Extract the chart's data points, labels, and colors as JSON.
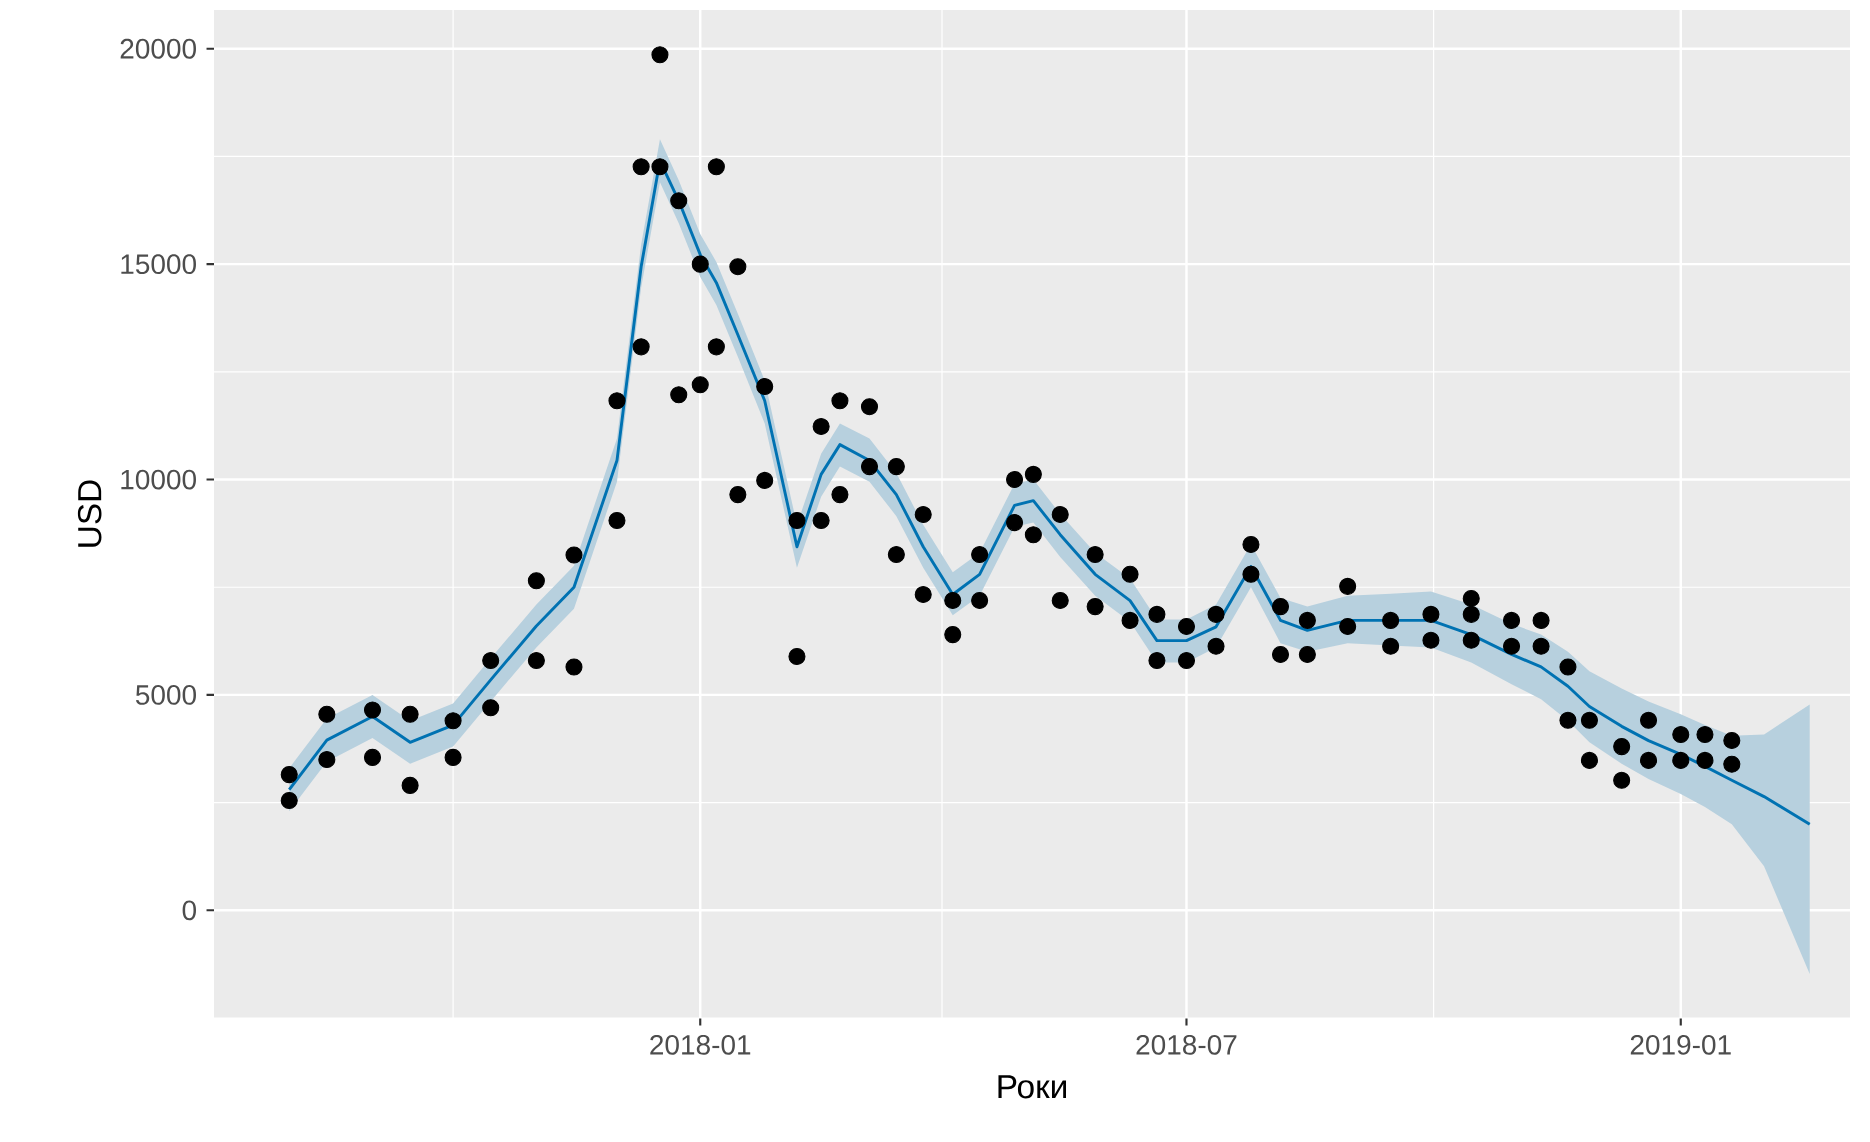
{
  "chart_data": {
    "type": "scatter",
    "xlabel": "Роки",
    "ylabel": "USD",
    "xlim": [
      "2017-07-04",
      "2019-03-05"
    ],
    "ylim": [
      -2500,
      20900
    ],
    "xticks": [
      {
        "value": "2017-10-01",
        "label": null
      },
      {
        "value": "2018-01-01",
        "label": "2018-01"
      },
      {
        "value": "2018-04-01",
        "label": null
      },
      {
        "value": "2018-07-01",
        "label": "2018-07"
      },
      {
        "value": "2018-10-01",
        "label": null
      },
      {
        "value": "2019-01-01",
        "label": "2019-01"
      }
    ],
    "yticks": [
      {
        "value": -2500,
        "label": null
      },
      0,
      {
        "value": 2500,
        "label": null
      },
      5000,
      {
        "value": 7500,
        "label": null
      },
      10000,
      {
        "value": 12500,
        "label": null
      },
      15000,
      {
        "value": 17500,
        "label": null
      },
      20000
    ],
    "grid": true,
    "series": [
      {
        "color": "#000000",
        "marker": "circle",
        "x": [
          "2017-08-01",
          "2017-08-01",
          "2017-08-15",
          "2017-08-15",
          "2017-09-01",
          "2017-09-01",
          "2017-09-15",
          "2017-09-15",
          "2017-10-01",
          "2017-10-01",
          "2017-10-15",
          "2017-10-15",
          "2017-11-01",
          "2017-11-01",
          "2017-11-15",
          "2017-11-15",
          "2017-12-01",
          "2017-12-01",
          "2017-12-10",
          "2017-12-10",
          "2017-12-17",
          "2017-12-17",
          "2017-12-24",
          "2017-12-24",
          "2018-01-01",
          "2018-01-01",
          "2018-01-07",
          "2018-01-07",
          "2018-01-15",
          "2018-01-15",
          "2018-01-25",
          "2018-01-25",
          "2018-02-06",
          "2018-02-06",
          "2018-02-15",
          "2018-02-15",
          "2018-02-22",
          "2018-02-22",
          "2018-03-05",
          "2018-03-05",
          "2018-03-15",
          "2018-03-15",
          "2018-03-25",
          "2018-03-25",
          "2018-04-05",
          "2018-04-05",
          "2018-04-15",
          "2018-04-15",
          "2018-04-28",
          "2018-04-28",
          "2018-05-05",
          "2018-05-05",
          "2018-05-15",
          "2018-05-15",
          "2018-05-28",
          "2018-05-28",
          "2018-06-10",
          "2018-06-10",
          "2018-06-20",
          "2018-06-20",
          "2018-07-01",
          "2018-07-01",
          "2018-07-12",
          "2018-07-12",
          "2018-07-25",
          "2018-07-25",
          "2018-08-05",
          "2018-08-05",
          "2018-08-15",
          "2018-08-15",
          "2018-08-30",
          "2018-08-30",
          "2018-09-15",
          "2018-09-15",
          "2018-09-30",
          "2018-09-30",
          "2018-10-15",
          "2018-10-15",
          "2018-10-15",
          "2018-10-30",
          "2018-10-30",
          "2018-11-10",
          "2018-11-10",
          "2018-11-20",
          "2018-11-20",
          "2018-11-28",
          "2018-11-28",
          "2018-12-10",
          "2018-12-10",
          "2018-12-20",
          "2018-12-20",
          "2019-01-01",
          "2019-01-01",
          "2019-01-10",
          "2019-01-10",
          "2019-01-20",
          "2019-01-20"
        ],
        "values": [
          2550,
          3150,
          3500,
          4550,
          3550,
          4650,
          2900,
          4550,
          3550,
          4400,
          4700,
          5800,
          5800,
          7650,
          5650,
          8250,
          9050,
          11830,
          13080,
          17260,
          17260,
          19860,
          11970,
          16470,
          12200,
          15000,
          13080,
          17260,
          9650,
          14940,
          9980,
          12160,
          5890,
          9050,
          9050,
          11230,
          9650,
          11830,
          10300,
          11690,
          8260,
          10300,
          7330,
          9190,
          6400,
          7190,
          7190,
          8260,
          9000,
          10000,
          8720,
          10120,
          7190,
          9190,
          7050,
          8260,
          6730,
          7800,
          5800,
          6870,
          5800,
          6590,
          6130,
          6870,
          7800,
          8490,
          5940,
          7050,
          5940,
          6730,
          6590,
          7520,
          6130,
          6730,
          6270,
          6870,
          6270,
          6870,
          7240,
          6130,
          6730,
          6130,
          6730,
          4410,
          5650,
          3480,
          4410,
          3020,
          3800,
          3480,
          4410,
          3480,
          4080,
          3480,
          4080,
          3390,
          3940
        ]
      },
      {
        "type": "line",
        "color": "#0072b2",
        "marker": "none",
        "line_style": "solid",
        "x": [
          "2017-08-01",
          "2017-08-15",
          "2017-09-01",
          "2017-09-15",
          "2017-10-01",
          "2017-10-15",
          "2017-11-01",
          "2017-11-15",
          "2017-12-01",
          "2017-12-10",
          "2017-12-17",
          "2017-12-24",
          "2018-01-01",
          "2018-01-07",
          "2018-01-15",
          "2018-01-25",
          "2018-02-06",
          "2018-02-15",
          "2018-02-22",
          "2018-03-05",
          "2018-03-15",
          "2018-03-25",
          "2018-04-05",
          "2018-04-15",
          "2018-04-28",
          "2018-05-05",
          "2018-05-15",
          "2018-05-28",
          "2018-06-10",
          "2018-06-20",
          "2018-07-01",
          "2018-07-12",
          "2018-07-25",
          "2018-08-05",
          "2018-08-15",
          "2018-08-30",
          "2018-09-15",
          "2018-09-30",
          "2018-10-15",
          "2018-10-30",
          "2018-11-10",
          "2018-11-20",
          "2018-11-28",
          "2018-12-10",
          "2018-12-20",
          "2019-01-01",
          "2019-01-10",
          "2019-01-20",
          "2019-02-01",
          "2019-02-18"
        ],
        "values": [
          2800,
          3950,
          4500,
          3900,
          4300,
          5350,
          6600,
          7500,
          10440,
          14940,
          17400,
          16470,
          15220,
          14570,
          13360,
          11830,
          8440,
          10120,
          10810,
          10440,
          9650,
          8440,
          7330,
          7800,
          9400,
          9510,
          8720,
          7800,
          7190,
          6260,
          6260,
          6580,
          7980,
          6730,
          6500,
          6730,
          6730,
          6730,
          6400,
          5940,
          5650,
          5200,
          4730,
          4270,
          3940,
          3620,
          3340,
          3020,
          2640,
          2000
        ],
        "lower": [
          2300,
          3450,
          4000,
          3400,
          3800,
          4850,
          6100,
          7000,
          9950,
          14450,
          16900,
          15950,
          14700,
          14050,
          12850,
          11300,
          7950,
          9600,
          10300,
          9950,
          9150,
          7950,
          6850,
          7300,
          8900,
          9000,
          8200,
          7300,
          6700,
          5750,
          5750,
          6100,
          7500,
          6200,
          6000,
          6200,
          6150,
          6100,
          5750,
          5250,
          4900,
          4400,
          3900,
          3400,
          3050,
          2700,
          2400,
          2000,
          1020,
          -1480
        ],
        "upper": [
          3300,
          4450,
          5000,
          4400,
          4800,
          5850,
          7100,
          8000,
          10950,
          15450,
          17900,
          16950,
          15700,
          15050,
          13850,
          12300,
          8950,
          10600,
          11300,
          10950,
          10150,
          8950,
          7850,
          8300,
          9900,
          10000,
          9200,
          8300,
          7700,
          6750,
          6750,
          7100,
          8500,
          7250,
          7050,
          7300,
          7350,
          7400,
          7100,
          6650,
          6400,
          6000,
          5550,
          5150,
          4850,
          4550,
          4300,
          4050,
          4080,
          4780
        ]
      }
    ]
  }
}
